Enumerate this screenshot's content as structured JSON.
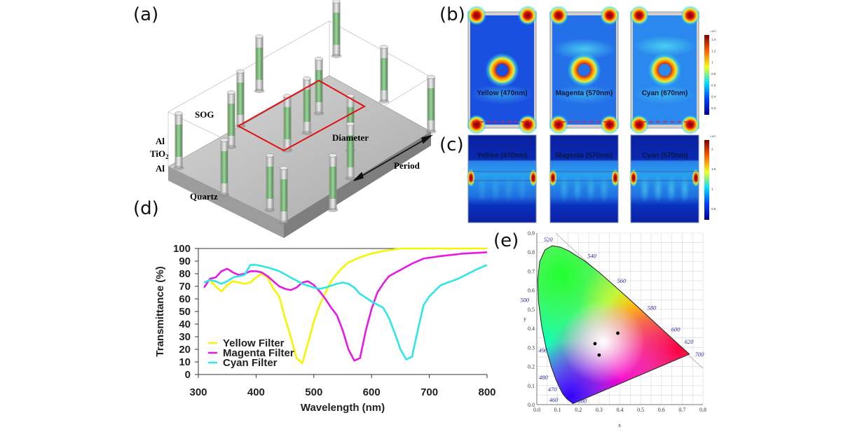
{
  "panels": {
    "a": {
      "label": "(a)",
      "annotations": {
        "sog": "SOG",
        "al_top": "Al",
        "tio2": "TiO",
        "tio2_sub": "2",
        "al_bottom": "Al",
        "quartz": "Quartz",
        "diameter": "Diameter",
        "period": "Period"
      }
    },
    "b": {
      "label": "(b)",
      "fields": [
        "Yellow (470nm)",
        "Magenta (570nm)",
        "Cyan (670nm)"
      ],
      "colorbar": {
        "exponent": "×10⁴",
        "ticks": [
          "1.4",
          "1.2",
          "1",
          "0.8",
          "0.6",
          "0.4",
          "0.2"
        ]
      }
    },
    "c": {
      "label": "(c)",
      "fields": [
        "Yellow (470nm)",
        "Magenta (570nm)",
        "Cyan (670nm)"
      ],
      "colorbar": {
        "exponent": "×10⁴",
        "ticks": [
          "2",
          "1.5",
          "1",
          "0.5"
        ]
      }
    },
    "d": {
      "label": "(d)"
    },
    "e": {
      "label": "(e)"
    }
  },
  "chart_data": [
    {
      "type": "line",
      "xlabel": "Wavelength (nm)",
      "ylabel": "Transmittance (%)",
      "xlim": [
        300,
        800
      ],
      "ylim": [
        0,
        100
      ],
      "xticks": [
        300,
        400,
        500,
        600,
        700,
        800
      ],
      "yticks": [
        0,
        10,
        20,
        30,
        40,
        50,
        60,
        70,
        80,
        90,
        100
      ],
      "grid": false,
      "legend_position": "bottom-left",
      "series": [
        {
          "name": "Yellow Filter",
          "color": "#f5f500",
          "x": [
            310,
            320,
            330,
            340,
            350,
            360,
            370,
            380,
            390,
            400,
            410,
            420,
            430,
            440,
            450,
            460,
            470,
            480,
            490,
            500,
            510,
            520,
            530,
            540,
            550,
            560,
            570,
            580,
            600,
            620,
            650,
            700,
            800
          ],
          "y": [
            73,
            75,
            70,
            66,
            71,
            74,
            73,
            72,
            73,
            77,
            80,
            77,
            68,
            62,
            45,
            30,
            13,
            9,
            25,
            42,
            55,
            65,
            74,
            80,
            85,
            89,
            91,
            93,
            96,
            98,
            100,
            100,
            100
          ]
        },
        {
          "name": "Magenta Filter",
          "color": "#e619e6",
          "x": [
            310,
            320,
            330,
            340,
            350,
            360,
            370,
            380,
            390,
            400,
            410,
            420,
            430,
            440,
            450,
            460,
            470,
            480,
            490,
            500,
            510,
            520,
            530,
            540,
            550,
            560,
            570,
            580,
            590,
            600,
            610,
            620,
            630,
            650,
            670,
            690,
            720,
            760,
            800
          ],
          "y": [
            69,
            76,
            77,
            82,
            84,
            81,
            79,
            80,
            82,
            82,
            81,
            78,
            74,
            70,
            68,
            67,
            69,
            73,
            74,
            71,
            66,
            60,
            53,
            47,
            35,
            20,
            11,
            13,
            35,
            52,
            65,
            72,
            78,
            83,
            88,
            92,
            94,
            96,
            97
          ]
        },
        {
          "name": "Cyan Filter",
          "color": "#2ee6e6",
          "x": [
            310,
            320,
            330,
            340,
            350,
            360,
            370,
            380,
            390,
            400,
            420,
            440,
            460,
            480,
            500,
            510,
            520,
            540,
            550,
            560,
            570,
            580,
            600,
            620,
            630,
            640,
            650,
            660,
            670,
            680,
            690,
            700,
            720,
            750,
            780,
            800
          ],
          "y": [
            73,
            75,
            74,
            72,
            74,
            77,
            78,
            79,
            87,
            87,
            85,
            82,
            77,
            72,
            69,
            68,
            69,
            72,
            73,
            72,
            69,
            64,
            58,
            53,
            45,
            33,
            20,
            12,
            14,
            35,
            55,
            62,
            71,
            76,
            83,
            87
          ]
        }
      ]
    },
    {
      "type": "scatter",
      "xlabel": "x",
      "ylabel": "y",
      "xlim": [
        0,
        0.8
      ],
      "ylim": [
        0,
        0.9
      ],
      "xticks": [
        "0.0",
        "0.1",
        "0.2",
        "0.3",
        "0.4",
        "0.5",
        "0.6",
        "0.7",
        "0.8"
      ],
      "yticks": [
        "0.0",
        "0.1",
        "0.2",
        "0.3",
        "0.4",
        "0.5",
        "0.6",
        "0.7",
        "0.8",
        "0.9"
      ],
      "grid": true,
      "wavelength_labels": [
        "380",
        "460",
        "470",
        "480",
        "490",
        "500",
        "520",
        "540",
        "560",
        "580",
        "600",
        "620",
        "700"
      ],
      "points": [
        {
          "x": 0.28,
          "y": 0.32
        },
        {
          "x": 0.3,
          "y": 0.26
        },
        {
          "x": 0.39,
          "y": 0.375
        }
      ]
    }
  ]
}
